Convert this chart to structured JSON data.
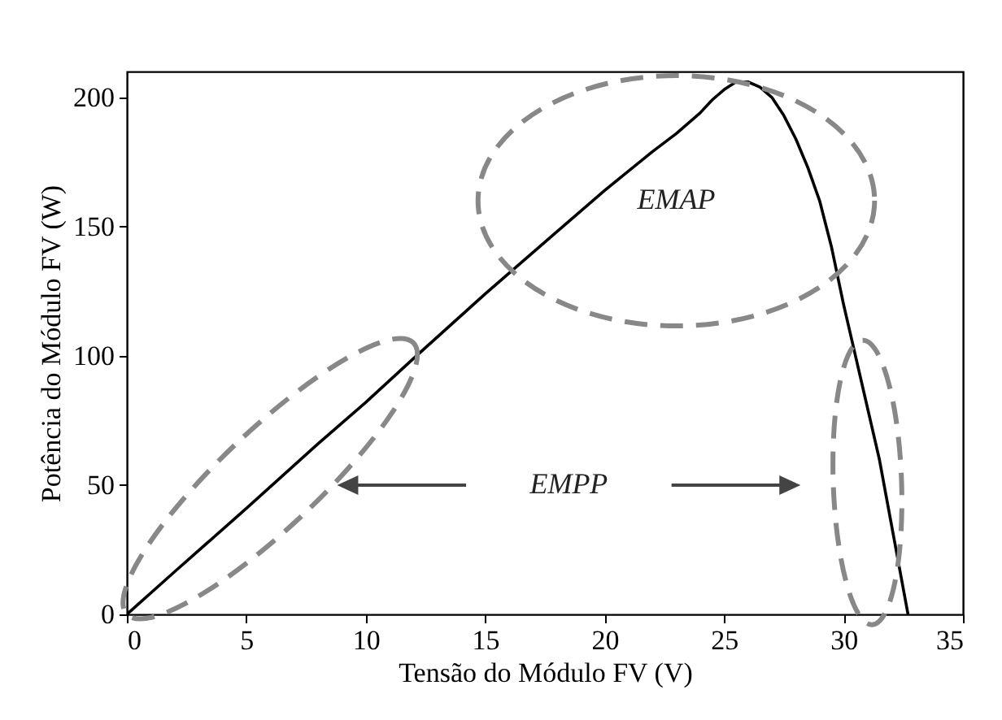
{
  "chart_data": {
    "type": "line",
    "xlabel": "Tensão do Módulo FV (V)",
    "ylabel": "Potência do Módulo FV (W)",
    "x": [
      0,
      2,
      5,
      8,
      10,
      12,
      15,
      18,
      20,
      22,
      23,
      24,
      24.5,
      25,
      25.5,
      26,
      26.5,
      27,
      27.5,
      28,
      28.5,
      29,
      29.5,
      30,
      30.5,
      31,
      31.5,
      32,
      32.4,
      32.7
    ],
    "series": [
      {
        "color": "#000000",
        "values": [
          0,
          16.5,
          41,
          66,
          82,
          99,
          124,
          148,
          164,
          179,
          186,
          194,
          199,
          203,
          206,
          206,
          204,
          200,
          193,
          184,
          173,
          160,
          142,
          120,
          100,
          80,
          60,
          35,
          15,
          0
        ]
      }
    ],
    "xlim": [
      0,
      35
    ],
    "xticks": [
      0,
      5,
      10,
      15,
      20,
      25,
      30,
      35
    ],
    "ylim": [
      0,
      210
    ],
    "yticks": [
      0,
      50,
      100,
      150,
      200
    ],
    "grid": false,
    "line_style": "solid",
    "marker": "none",
    "annotations": [
      "EMAP",
      "EMPP"
    ]
  }
}
